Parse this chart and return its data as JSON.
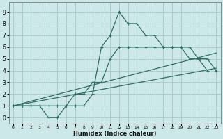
{
  "xlabel": "Humidex (Indice chaleur)",
  "x_ticks": [
    0,
    1,
    2,
    3,
    4,
    5,
    6,
    7,
    8,
    9,
    10,
    11,
    12,
    13,
    14,
    15,
    16,
    17,
    18,
    19,
    20,
    21,
    22,
    23
  ],
  "y_ticks": [
    0,
    1,
    2,
    3,
    4,
    5,
    6,
    7,
    8,
    9
  ],
  "xlim": [
    -0.5,
    23.5
  ],
  "ylim": [
    -0.5,
    9.8
  ],
  "bg_color": "#cce8e8",
  "grid_color": "#aacccc",
  "line_color": "#2e6e62",
  "line1_x": [
    0,
    1,
    2,
    3,
    4,
    5,
    6,
    7,
    8,
    9,
    10,
    11,
    12,
    13,
    14,
    15,
    16,
    17,
    18,
    19,
    20,
    21,
    22
  ],
  "line1_y": [
    1,
    1,
    1,
    1,
    0,
    0,
    1,
    1,
    1,
    2,
    6,
    7,
    9,
    8,
    8,
    7,
    7,
    6,
    6,
    6,
    5,
    5,
    4
  ],
  "line2_x": [
    0,
    1,
    2,
    3,
    4,
    5,
    6,
    7,
    8,
    9,
    10,
    11,
    12,
    13,
    14,
    15,
    16,
    17,
    18,
    19,
    20,
    21,
    22,
    23
  ],
  "line2_y": [
    1,
    1,
    1,
    1,
    1,
    1,
    1,
    2,
    2,
    3,
    3,
    5,
    6,
    6,
    6,
    6,
    6,
    6,
    6,
    6,
    6,
    5,
    5,
    4
  ],
  "line3_x": [
    0,
    23
  ],
  "line3_y": [
    1,
    4.2
  ],
  "line4_x": [
    0,
    23
  ],
  "line4_y": [
    1,
    5.5
  ]
}
